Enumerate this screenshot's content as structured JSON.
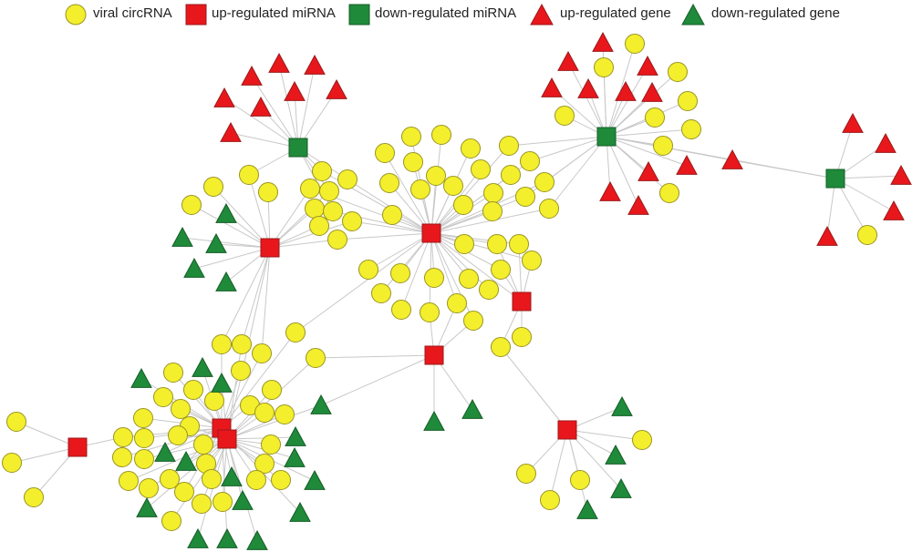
{
  "legend": {
    "viral_circrna": "viral circRNA",
    "up_mirna": "up-regulated miRNA",
    "down_mirna": "down-regulated miRNA",
    "up_gene": "up-regulated gene",
    "down_gene": "down-regulated gene"
  },
  "colors": {
    "circrna_fill": "#f3ef2d",
    "circrna_stroke": "#9a9420",
    "up_red": "#e8171c",
    "down_green": "#1f8a3a",
    "edge": "#c8c8c8"
  }
}
